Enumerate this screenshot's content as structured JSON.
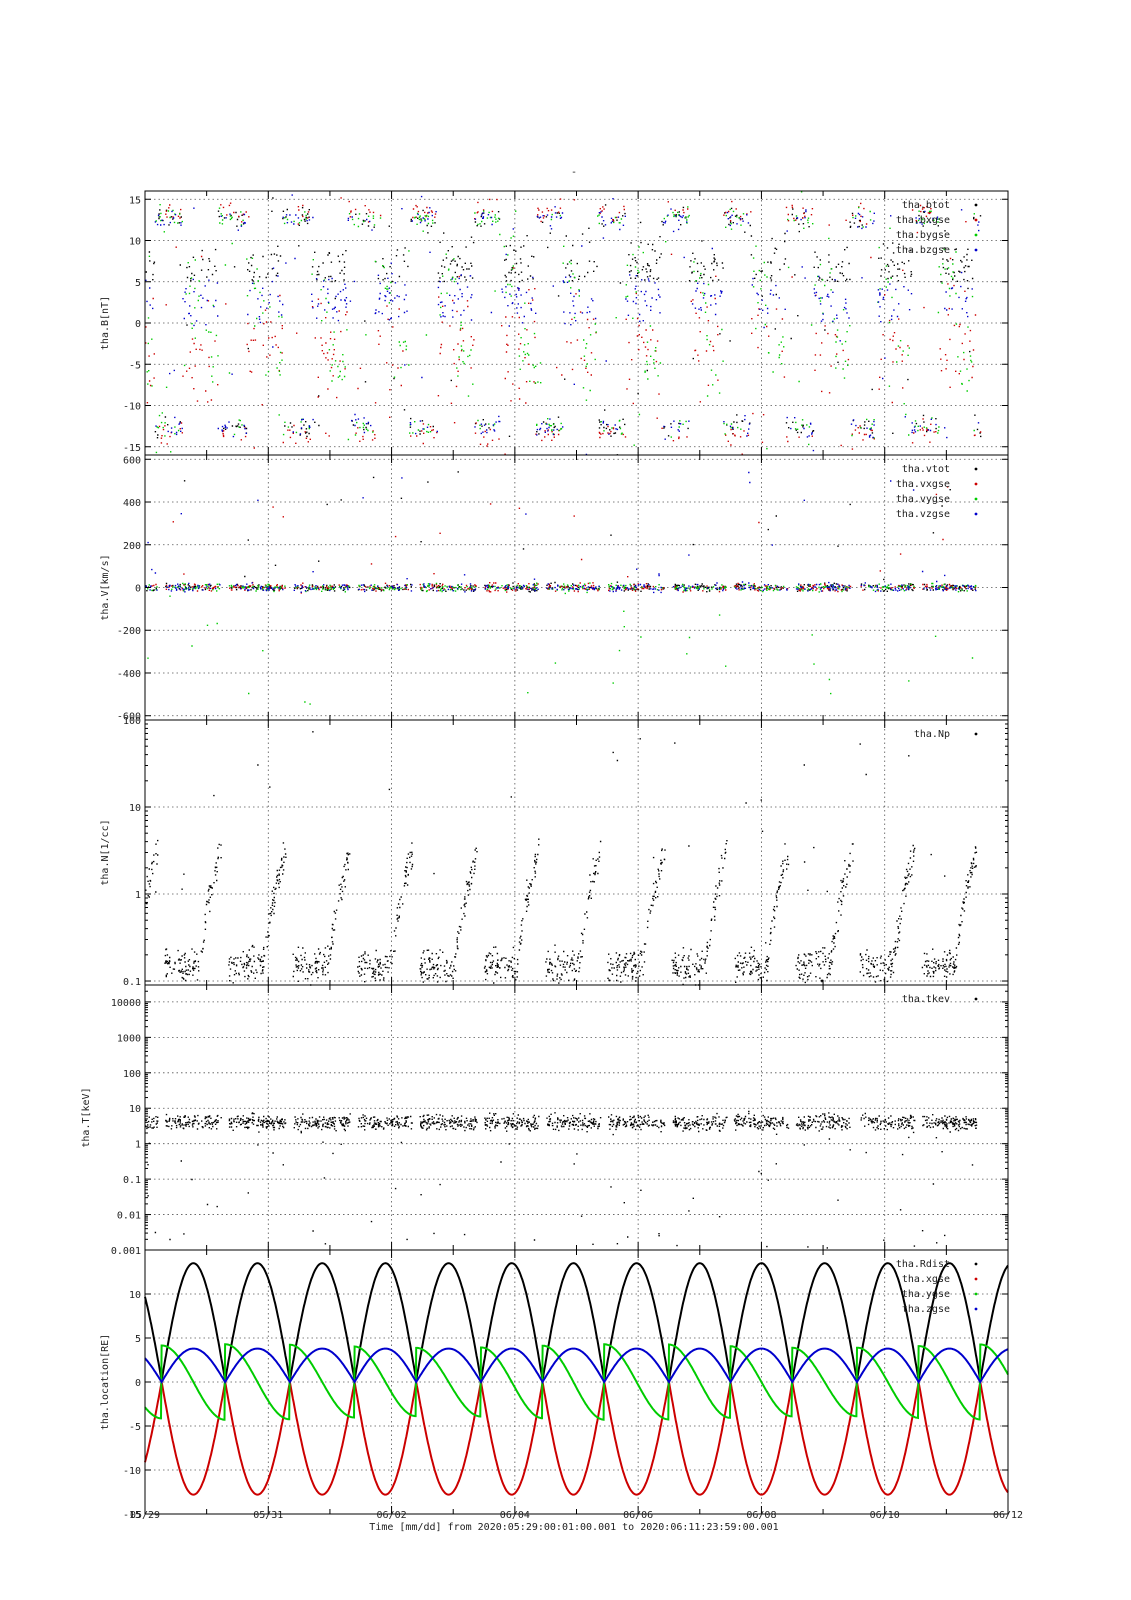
{
  "page_title": "-",
  "footer": {
    "time_axis_label": "Time [mm/dd]  from 2020:05:29:00:01:00.001  to  2020:06:11:23:59:00.001"
  },
  "colors": {
    "black": "#000000",
    "red": "#cc0000",
    "green": "#00cc00",
    "blue": "#0000cc"
  },
  "chart_data": [
    {
      "type": "scatter",
      "ylabel": "tha.B[nT]",
      "yscale": "linear",
      "ylim": [
        -16,
        16
      ],
      "yticks": [
        -15,
        -10,
        -5,
        0,
        5,
        10,
        15
      ],
      "ytick_labels": [
        "-15",
        "-10",
        "-5",
        "0",
        "5",
        "10",
        "15"
      ],
      "grid": true,
      "legend": "top-right",
      "series": [
        {
          "name": "tha.btot",
          "color": "#000000"
        },
        {
          "name": "tha.bxgse",
          "color": "#cc0000"
        },
        {
          "name": "tha.bygse",
          "color": "#00cc00"
        },
        {
          "name": "tha.bzgse",
          "color": "#0000cc"
        }
      ]
    },
    {
      "type": "scatter",
      "ylabel": "tha.V[km/s]",
      "yscale": "linear",
      "ylim": [
        -620,
        620
      ],
      "yticks": [
        -600,
        -400,
        -200,
        0,
        200,
        400,
        600
      ],
      "ytick_labels": [
        "-600",
        "-400",
        "-200",
        "0",
        "200",
        "400",
        "600"
      ],
      "grid": true,
      "legend": "top-right",
      "series": [
        {
          "name": "tha.vtot",
          "color": "#000000"
        },
        {
          "name": "tha.vxgse",
          "color": "#cc0000"
        },
        {
          "name": "tha.vygse",
          "color": "#00cc00"
        },
        {
          "name": "tha.vzgse",
          "color": "#0000cc"
        }
      ]
    },
    {
      "type": "scatter",
      "ylabel": "tha.N[1/cc]",
      "yscale": "log",
      "ylim": [
        0.09,
        100
      ],
      "yticks": [
        0.1,
        1,
        10,
        100
      ],
      "ytick_labels": [
        "0.1",
        "1",
        "10",
        "100"
      ],
      "grid": true,
      "legend": "top-right",
      "series": [
        {
          "name": "tha.Np",
          "color": "#000000"
        }
      ]
    },
    {
      "type": "scatter",
      "ylabel": "tha.T[keV]",
      "yscale": "log",
      "ylim": [
        0.001,
        30000
      ],
      "yticks": [
        0.001,
        0.01,
        0.1,
        1,
        10,
        100,
        1000,
        10000
      ],
      "ytick_labels": [
        "0.001",
        "0.01",
        "0.1",
        "1",
        "10",
        "100",
        "1000",
        "10000"
      ],
      "grid": true,
      "legend": "top-right",
      "series": [
        {
          "name": "tha.tkev",
          "color": "#000000"
        }
      ]
    },
    {
      "type": "line",
      "ylabel": "tha.location[RE]",
      "yscale": "linear",
      "ylim": [
        -15,
        15
      ],
      "yticks": [
        -15,
        -10,
        -5,
        0,
        5,
        10
      ],
      "ytick_labels": [
        "-15",
        "-10",
        "-5",
        "0",
        "5",
        "10"
      ],
      "grid": true,
      "legend": "top-right",
      "series": [
        {
          "name": "tha.Rdist",
          "color": "#000000",
          "min": 0.2,
          "max": 13.5
        },
        {
          "name": "tha.xgse",
          "color": "#cc0000",
          "min": -12.8,
          "max": 0
        },
        {
          "name": "tha.ygse",
          "color": "#00cc00",
          "min": -4.4,
          "max": 4.3
        },
        {
          "name": "tha.zgse",
          "color": "#0000cc",
          "min": 0,
          "max": 3.8
        }
      ]
    }
  ],
  "x_axis": {
    "range": [
      "2020-05-29",
      "2020-06-12"
    ],
    "tick_labels": [
      "05/29",
      "05/31",
      "06/02",
      "06/04",
      "06/06",
      "06/08",
      "06/10",
      "06/12"
    ],
    "tick_days": [
      0,
      2,
      4,
      6,
      8,
      10,
      12,
      14
    ],
    "orbit_apogee_days": [
      0.8,
      1.85,
      2.9,
      3.9,
      4.95,
      5.95,
      6.95,
      8.0,
      9.0,
      10.0,
      11.05,
      12.05,
      13.05
    ],
    "orbit_perigee_days": [
      0.27,
      1.3,
      2.35,
      3.4,
      4.4,
      5.45,
      6.45,
      7.45,
      8.5,
      9.5,
      10.5,
      11.55,
      12.55,
      13.55
    ]
  }
}
